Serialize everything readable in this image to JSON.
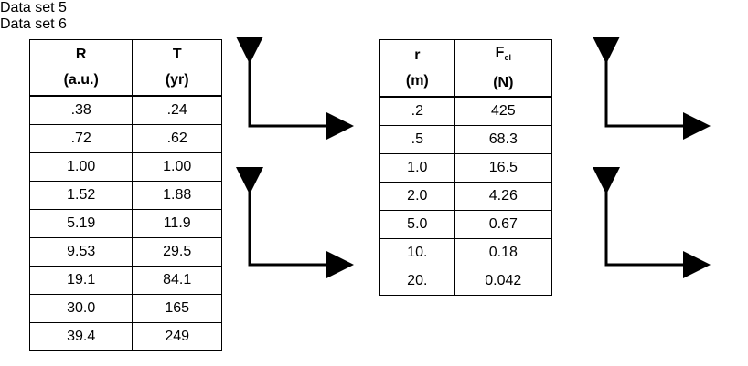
{
  "tables": [
    {
      "title": "Data set 5",
      "headers": [
        {
          "symbol": "R",
          "unit": "(a.u.)"
        },
        {
          "symbol": "T",
          "unit": "(yr)"
        }
      ],
      "rows": [
        [
          ".38",
          ".24"
        ],
        [
          ".72",
          ".62"
        ],
        [
          "1.00",
          "1.00"
        ],
        [
          "1.52",
          "1.88"
        ],
        [
          "5.19",
          "11.9"
        ],
        [
          "9.53",
          "29.5"
        ],
        [
          "19.1",
          "84.1"
        ],
        [
          "30.0",
          "165"
        ],
        [
          "39.4",
          "249"
        ]
      ]
    },
    {
      "title": "Data set 6",
      "headers": [
        {
          "symbol": "r",
          "unit": "(m)"
        },
        {
          "symbol": "F",
          "subscript": "el",
          "unit": "(N)"
        }
      ],
      "rows": [
        [
          ".2",
          "425"
        ],
        [
          ".5",
          "68.3"
        ],
        [
          "1.0",
          "16.5"
        ],
        [
          "2.0",
          "4.26"
        ],
        [
          "5.0",
          "0.67"
        ],
        [
          "10.",
          "0.18"
        ],
        [
          "20.",
          "0.042"
        ]
      ]
    }
  ]
}
